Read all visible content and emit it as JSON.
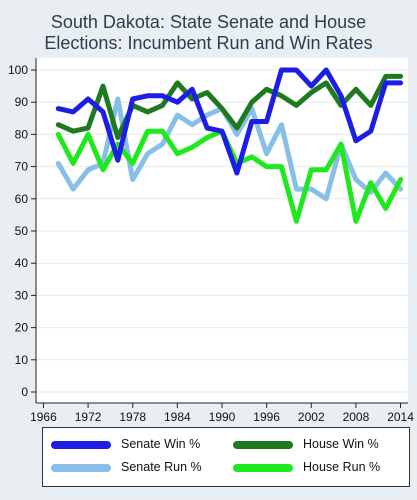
{
  "chart_data": {
    "type": "line",
    "title_lines": [
      "South Dakota: State Senate and House",
      "Elections: Incumbent Run and Win Rates"
    ],
    "xlabel": "",
    "ylabel": "",
    "xlim": [
      1965,
      2015
    ],
    "ylim": [
      0,
      100
    ],
    "x_ticks": [
      1966,
      1972,
      1978,
      1984,
      1990,
      1996,
      2002,
      2008,
      2014
    ],
    "y_ticks": [
      0,
      10,
      20,
      30,
      40,
      50,
      60,
      70,
      80,
      90,
      100
    ],
    "grid": "horizontal",
    "legend_position": "bottom",
    "series": [
      {
        "name": "Senate Run %",
        "color": "#87bfe9",
        "x": [
          1968,
          1970,
          1972,
          1974,
          1976,
          1978,
          1980,
          1982,
          1984,
          1986,
          1988,
          1990,
          1992,
          1994,
          1996,
          1998,
          2000,
          2002,
          2004,
          2006,
          2008,
          2010,
          2012,
          2014
        ],
        "y": [
          71,
          63,
          69,
          71,
          91,
          66,
          74,
          77,
          86,
          83,
          86,
          88,
          80,
          88,
          74,
          83,
          63,
          63,
          60,
          77,
          66,
          62,
          68,
          63
        ]
      },
      {
        "name": "House Run %",
        "color": "#1fe81f",
        "x": [
          1968,
          1970,
          1972,
          1974,
          1976,
          1978,
          1980,
          1982,
          1984,
          1986,
          1988,
          1990,
          1992,
          1994,
          1996,
          1998,
          2000,
          2002,
          2004,
          2006,
          2008,
          2010,
          2012,
          2014
        ],
        "y": [
          80,
          71,
          80,
          69,
          77,
          71,
          81,
          81,
          74,
          76,
          79,
          81,
          71,
          73,
          70,
          70,
          53,
          69,
          69,
          77,
          53,
          65,
          57,
          66
        ]
      },
      {
        "name": "House Win %",
        "color": "#1e7a1e",
        "x": [
          1968,
          1970,
          1972,
          1974,
          1976,
          1978,
          1980,
          1982,
          1984,
          1986,
          1988,
          1990,
          1992,
          1994,
          1996,
          1998,
          2000,
          2002,
          2004,
          2006,
          2008,
          2010,
          2012,
          2014
        ],
        "y": [
          83,
          81,
          82,
          95,
          79,
          89,
          87,
          89,
          96,
          91,
          93,
          88,
          82,
          90,
          94,
          92,
          89,
          93,
          96,
          89,
          94,
          89,
          98,
          98
        ]
      },
      {
        "name": "Senate Win %",
        "color": "#1d1de6",
        "x": [
          1968,
          1970,
          1972,
          1974,
          1976,
          1978,
          1980,
          1982,
          1984,
          1986,
          1988,
          1990,
          1992,
          1994,
          1996,
          1998,
          2000,
          2002,
          2004,
          2006,
          2008,
          2010,
          2012,
          2014
        ],
        "y": [
          88,
          87,
          91,
          87,
          72,
          91,
          92,
          92,
          90,
          94,
          82,
          81,
          68,
          84,
          84,
          100,
          100,
          95,
          100,
          92,
          78,
          81,
          96,
          96
        ]
      }
    ]
  },
  "legend": {
    "items": [
      {
        "label": "Senate Win %",
        "color": "#1d1de6"
      },
      {
        "label": "House Win %",
        "color": "#1e7a1e"
      },
      {
        "label": "Senate Run %",
        "color": "#87bfe9"
      },
      {
        "label": "House Run %",
        "color": "#1fe81f"
      }
    ]
  }
}
